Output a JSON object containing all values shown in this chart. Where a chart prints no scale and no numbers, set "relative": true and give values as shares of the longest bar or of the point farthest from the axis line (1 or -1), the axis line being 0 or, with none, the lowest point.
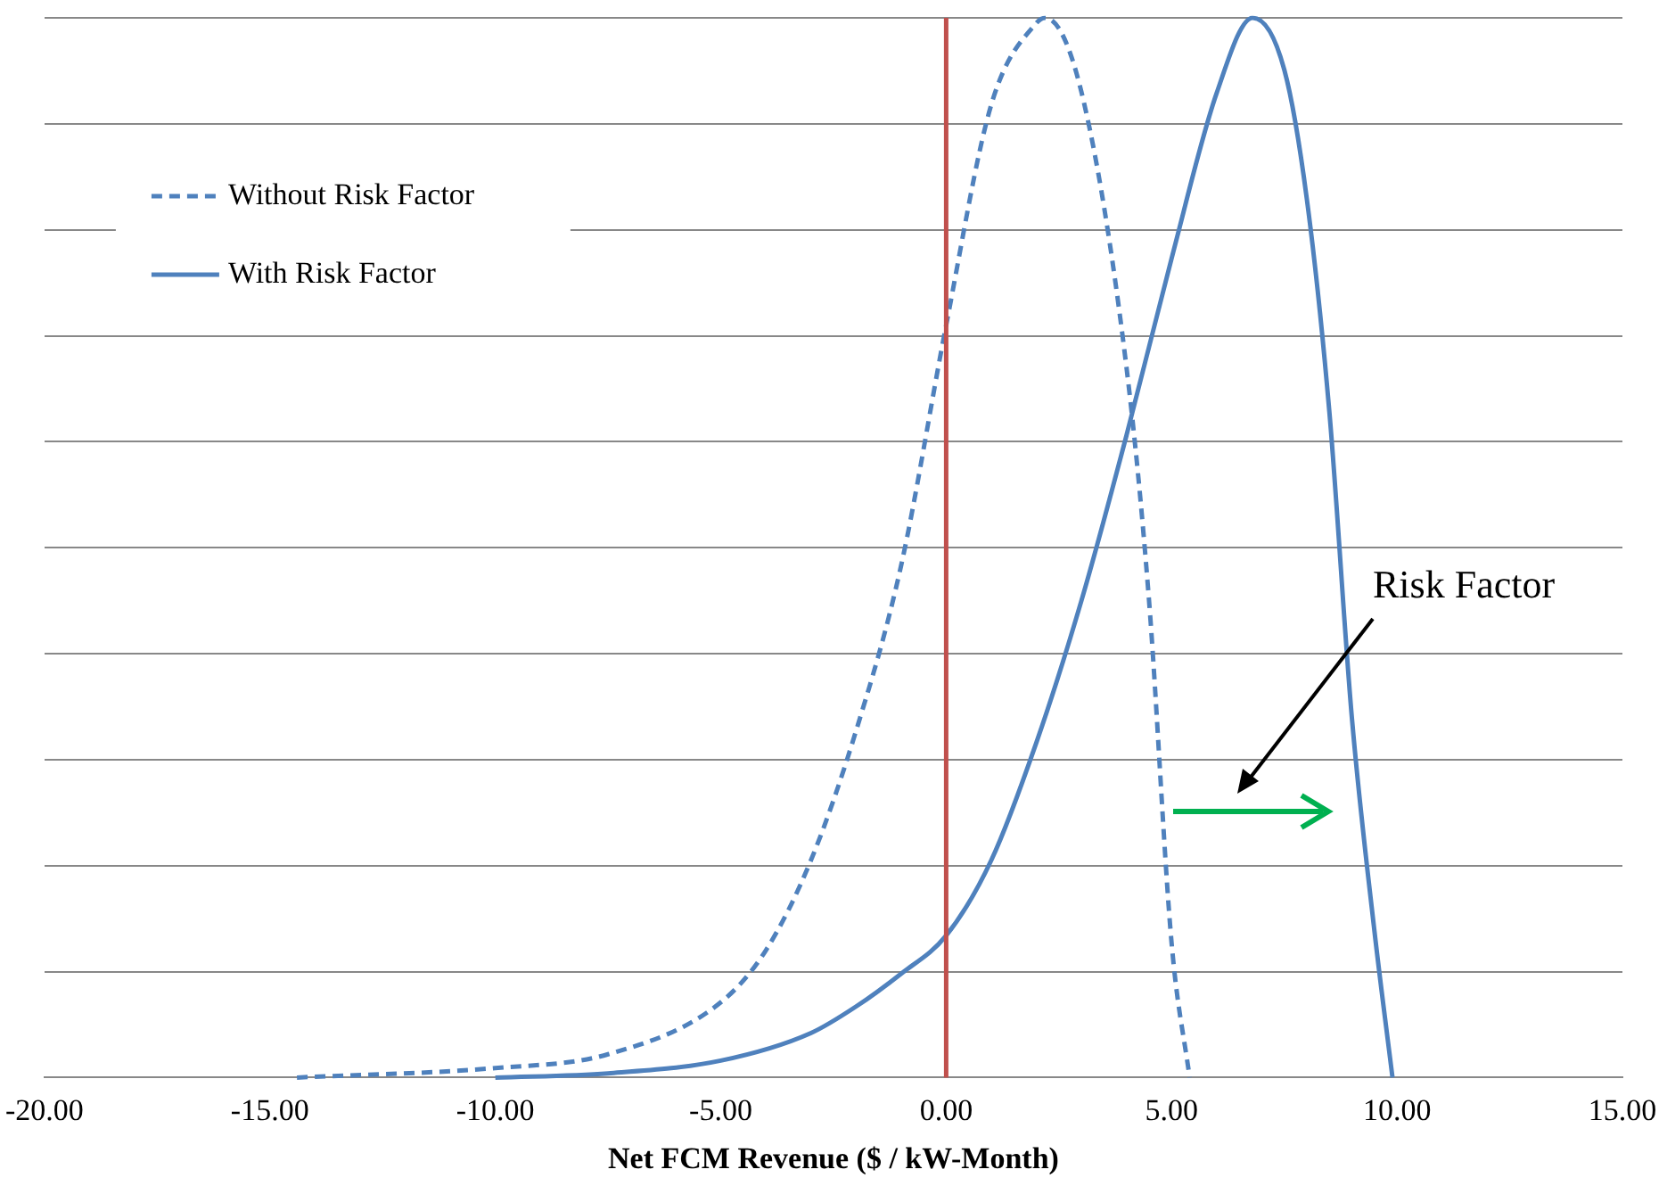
{
  "chart_data": {
    "type": "line",
    "relative": true,
    "xlabel": "Net FCM Revenue ($ / kW-Month)",
    "xlim": [
      -20,
      15
    ],
    "xticks": [
      {
        "value": -20,
        "label": "-20.00"
      },
      {
        "value": -15,
        "label": "-15.00"
      },
      {
        "value": -10,
        "label": "-10.00"
      },
      {
        "value": -5,
        "label": "-5.00"
      },
      {
        "value": 0,
        "label": "0.00"
      },
      {
        "value": 5,
        "label": "5.00"
      },
      {
        "value": 10,
        "label": "10.00"
      },
      {
        "value": 15,
        "label": "15.00"
      }
    ],
    "grid": "y",
    "legend": "top left",
    "marker": "none",
    "tick_labels": "x",
    "series": [
      {
        "name": "Without Risk Factor",
        "color": "#4f81bd",
        "line_style": "dashed",
        "x": [
          -14.4,
          -10,
          -7.5,
          -5,
          -4,
          -3,
          -2,
          -1,
          0,
          1,
          2,
          2.2,
          3,
          4,
          4.5,
          5,
          5.4
        ],
        "values": [
          0,
          0.009,
          0.022,
          0.071,
          0.12,
          0.205,
          0.327,
          0.483,
          0.71,
          0.918,
          0.995,
          1,
          0.93,
          0.67,
          0.45,
          0.127,
          0
        ]
      },
      {
        "name": "With Risk Factor",
        "color": "#4f81bd",
        "line_style": "solid",
        "x": [
          -10,
          -7.5,
          -5,
          -3,
          -2,
          -1,
          0,
          1,
          2,
          3,
          4,
          5,
          6,
          6.8,
          7.5,
          8,
          8.5,
          9,
          9.5,
          9.9
        ],
        "values": [
          0,
          0.004,
          0.016,
          0.042,
          0.067,
          0.098,
          0.134,
          0.205,
          0.316,
          0.45,
          0.606,
          0.773,
          0.929,
          1,
          0.951,
          0.829,
          0.628,
          0.339,
          0.138,
          0
        ]
      }
    ],
    "ref_lines": [
      {
        "axis": "x",
        "value": 0,
        "color": "#c0504d",
        "line_style": "solid"
      }
    ],
    "annotations": [
      "Risk Factor"
    ]
  }
}
